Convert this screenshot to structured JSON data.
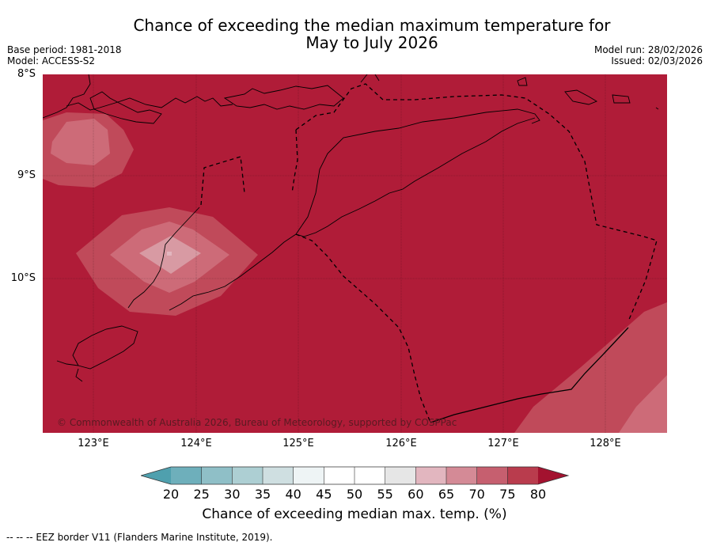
{
  "title_line1": "Chance of exceeding the median maximum temperature for",
  "title_line2": "May to July 2026",
  "base_period": "Base period: 1981-2018",
  "model": "Model: ACCESS-S2",
  "model_run": "Model run: 28/02/2026",
  "issued": "Issued: 02/03/2026",
  "lat_labels": [
    "8°S",
    "9°S",
    "10°S"
  ],
  "lon_labels": [
    "123°E",
    "124°E",
    "125°E",
    "126°E",
    "127°E",
    "128°E"
  ],
  "copyright": "© Commonwealth of Australia 2026, Bureau of Meteorology, supported by COSPPac",
  "colorbar": {
    "ticks": [
      "20",
      "25",
      "30",
      "35",
      "40",
      "45",
      "50",
      "55",
      "60",
      "65",
      "70",
      "75",
      "80"
    ],
    "colors": [
      "#4fa0ae",
      "#6eafbb",
      "#8fbfc7",
      "#adcfd3",
      "#cfdfe1",
      "#eef4f5",
      "#ffffff",
      "#ffffff",
      "#e6e6e6",
      "#e2b6bf",
      "#d48a96",
      "#c65f6f",
      "#b93c4d",
      "#a3122f"
    ],
    "title": "Chance of exceeding median max. temp. (%)"
  },
  "footer": "--  --  -- EEZ border V11 (Flanders Marine Institute, 2019).",
  "map_colors": {
    "band_80plus": "#b01c38",
    "band_75_80": "#c04a5a",
    "band_70_75": "#cd6b78",
    "band_65_70": "#d89aa3"
  }
}
